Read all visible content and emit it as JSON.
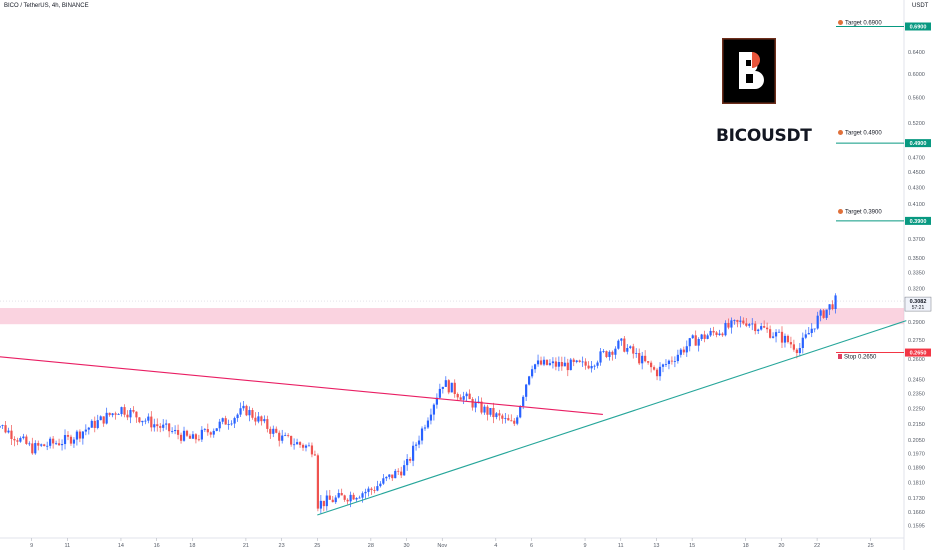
{
  "header": {
    "symbol_line": "BICO / TetherUS, 4h, BINANCE",
    "currency": "USDT"
  },
  "title": "BICOUSDT",
  "colors": {
    "up": "#2962ff",
    "down": "#ef5350",
    "zone": "#f8bbd0",
    "support": "#26a69a",
    "resistance_line": "#e91e63",
    "target_line": "#089981",
    "stop_line": "#f23645",
    "logo_bg": "#000000",
    "logo_border": "#6d2e1b",
    "logo_accent": "#e8543a"
  },
  "annotations": {
    "targets": [
      {
        "label": "Target 0.6900",
        "price": 0.69
      },
      {
        "label": "Target 0.4900",
        "price": 0.49
      },
      {
        "label": "Target 0.3900",
        "price": 0.39
      }
    ],
    "stop": {
      "label": "Stop 0.2650",
      "price": 0.265
    }
  },
  "chart_data": {
    "type": "candlestick",
    "symbol": "BICO / TetherUS",
    "interval": "4h",
    "exchange": "BINANCE",
    "y_axis": {
      "unit": "USDT",
      "scale": "log",
      "ticks": [
        "0.6900",
        "0.6400",
        "0.6000",
        "0.5600",
        "0.5200",
        "0.4900",
        "0.4700",
        "0.4500",
        "0.4300",
        "0.4100",
        "0.3900",
        "0.3700",
        "0.3500",
        "0.3350",
        "0.3200",
        "0.3050",
        "0.2900",
        "0.2750",
        "0.2650",
        "0.2600",
        "0.2450",
        "0.2350",
        "0.2250",
        "0.2150",
        "0.2050",
        "0.1970",
        "0.1890",
        "0.1810",
        "0.1730",
        "0.1660",
        "0.1595"
      ]
    },
    "x_axis": {
      "ticks": [
        "9",
        "11",
        "14",
        "16",
        "18",
        "21",
        "23",
        "25",
        "28",
        "30",
        "Nov",
        "4",
        "6",
        "9",
        "11",
        "13",
        "15",
        "18",
        "20",
        "22",
        "25",
        "27"
      ]
    },
    "last_price": {
      "value": "0.3082",
      "countdown": "57:21"
    },
    "horizontal_lines": [
      {
        "label": "0.6900",
        "price": 0.69,
        "color": "target"
      },
      {
        "label": "0.4900",
        "price": 0.49,
        "color": "target"
      },
      {
        "label": "0.3900",
        "price": 0.39,
        "color": "target"
      },
      {
        "label": "0.2650",
        "price": 0.265,
        "color": "stop"
      }
    ],
    "zone": {
      "from": 0.288,
      "to": 0.302
    },
    "trendlines": [
      {
        "name": "descending",
        "from": {
          "x": "Oct 7",
          "price": 0.262
        },
        "to": {
          "x": "Nov 10",
          "price": 0.221
        }
      },
      {
        "name": "ascending support",
        "from": {
          "x": "Oct 25",
          "price": 0.1645
        },
        "to": {
          "x": "Nov 27",
          "price": 0.291
        }
      }
    ],
    "price_path": [
      {
        "x": "Oct 7",
        "price": 0.216
      },
      {
        "x": "Oct 9",
        "price": 0.2
      },
      {
        "x": "Oct 11",
        "price": 0.205
      },
      {
        "x": "Oct 14",
        "price": 0.225
      },
      {
        "x": "Oct 16",
        "price": 0.214
      },
      {
        "x": "Oct 18",
        "price": 0.205
      },
      {
        "x": "Oct 21",
        "price": 0.224
      },
      {
        "x": "Oct 23",
        "price": 0.206
      },
      {
        "x": "Oct 25",
        "price": 0.199
      },
      {
        "x": "Oct 25",
        "price": 0.17
      },
      {
        "x": "Oct 28",
        "price": 0.177
      },
      {
        "x": "Oct 30",
        "price": 0.19
      },
      {
        "x": "Nov 1",
        "price": 0.243
      },
      {
        "x": "Nov 3",
        "price": 0.226
      },
      {
        "x": "Nov 5",
        "price": 0.214
      },
      {
        "x": "Nov 6",
        "price": 0.256
      },
      {
        "x": "Nov 9",
        "price": 0.255
      },
      {
        "x": "Nov 11",
        "price": 0.272
      },
      {
        "x": "Nov 13",
        "price": 0.25
      },
      {
        "x": "Nov 15",
        "price": 0.274
      },
      {
        "x": "Nov 18",
        "price": 0.291
      },
      {
        "x": "Nov 20",
        "price": 0.277
      },
      {
        "x": "Nov 21",
        "price": 0.268
      },
      {
        "x": "Nov 22",
        "price": 0.292
      },
      {
        "x": "Nov 23",
        "price": 0.3082
      }
    ]
  }
}
